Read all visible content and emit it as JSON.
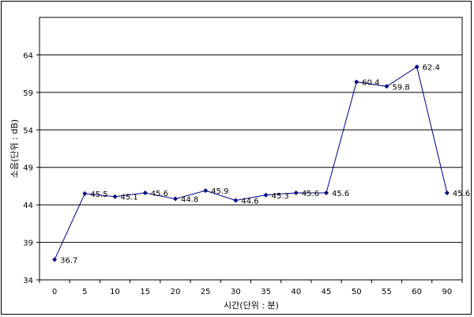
{
  "chart_data": {
    "type": "line",
    "title": "",
    "xlabel": "시간(단위 : 분)",
    "ylabel": "소음(단위 : dB)",
    "categories": [
      "0",
      "5",
      "10",
      "15",
      "20",
      "25",
      "30",
      "35",
      "40",
      "45",
      "50",
      "55",
      "60",
      "90"
    ],
    "series": [
      {
        "values": [
          36.7,
          45.5,
          45.1,
          45.6,
          44.8,
          45.9,
          44.6,
          45.3,
          45.6,
          45.6,
          60.4,
          59.8,
          62.4,
          45.6
        ],
        "labels": [
          "36.7",
          "45.5",
          "45.1",
          "45.6",
          "44.8",
          "45.9",
          "44.6",
          "45.3",
          "45.6",
          "45.6",
          "60.4",
          "59.8",
          "62.4",
          "45.6"
        ],
        "color": "#000080"
      }
    ],
    "ylim": [
      34,
      69
    ],
    "yticks": [
      "34",
      "39",
      "44",
      "49",
      "54",
      "59",
      "64"
    ],
    "grid": "horizontal",
    "legend": "none"
  }
}
